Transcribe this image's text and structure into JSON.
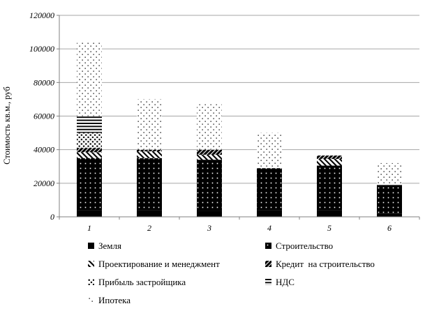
{
  "figure": {
    "background": "#ffffff",
    "colors": {
      "grid": "#a6a6a6",
      "axis": "#808080",
      "text": "#000000"
    }
  },
  "chart_data": {
    "type": "bar",
    "stacked": true,
    "title": "",
    "xlabel": "",
    "ylabel": "Стоимость кв.м., руб",
    "ylim": [
      0,
      120000
    ],
    "ytick_step": 20000,
    "ytick_labels": [
      "0",
      "20000",
      "40000",
      "60000",
      "80000",
      "100000",
      "120000"
    ],
    "grid": true,
    "legend_position": "bottom-left-two-columns",
    "categories": [
      "1",
      "2",
      "3",
      "4",
      "5",
      "6"
    ],
    "series": [
      {
        "name": "Земля",
        "pattern": "solid-black",
        "values": [
          4000,
          4000,
          3500,
          4000,
          4000,
          2000
        ]
      },
      {
        "name": "Строительство",
        "pattern": "black-white-dots",
        "values": [
          31000,
          31000,
          30500,
          25000,
          26500,
          17000
        ]
      },
      {
        "name": "Проектирование и менеджмент",
        "pattern": "diagonal-stripes",
        "values": [
          3500,
          4000,
          3000,
          0,
          4000,
          0
        ]
      },
      {
        "name": "Кредит  на строительство",
        "pattern": "dense-crosshatch",
        "values": [
          2500,
          1000,
          3000,
          0,
          2000,
          0
        ]
      },
      {
        "name": "Прибыль застройщика",
        "pattern": "coarse-dots",
        "values": [
          9000,
          0,
          0,
          0,
          0,
          0
        ]
      },
      {
        "name": "НДС",
        "pattern": "horizontal-lines",
        "values": [
          10000,
          0,
          0,
          0,
          0,
          0
        ]
      },
      {
        "name": "Ипотека",
        "pattern": "fine-dots",
        "values": [
          44000,
          30000,
          27000,
          21000,
          0,
          13000
        ]
      }
    ],
    "totals": [
      104000,
      70000,
      67000,
      50000,
      36500,
      32000
    ]
  }
}
